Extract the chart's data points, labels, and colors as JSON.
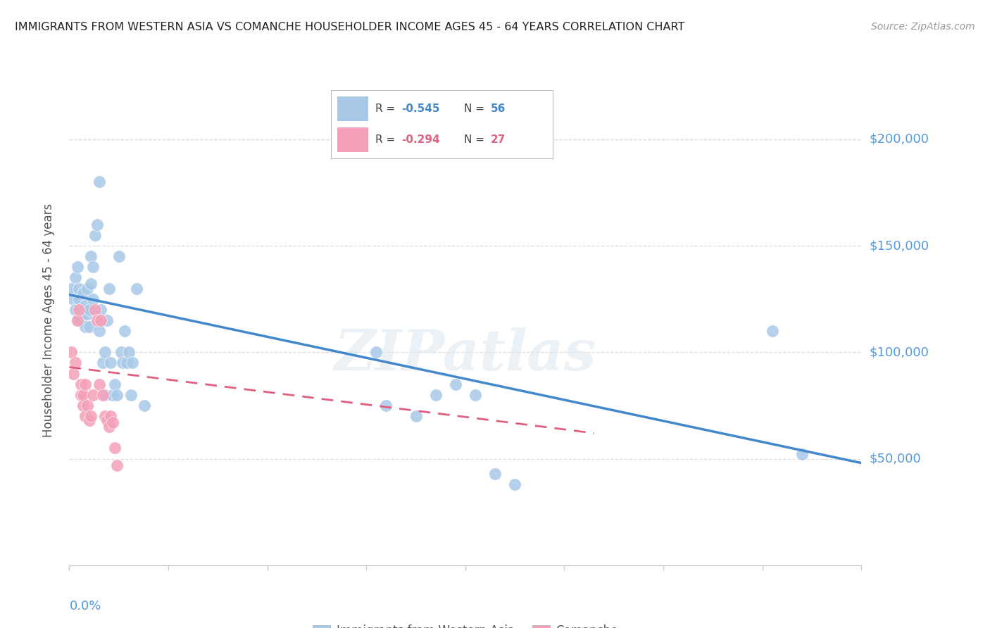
{
  "title": "IMMIGRANTS FROM WESTERN ASIA VS COMANCHE HOUSEHOLDER INCOME AGES 45 - 64 YEARS CORRELATION CHART",
  "source": "Source: ZipAtlas.com",
  "ylabel": "Householder Income Ages 45 - 64 years",
  "xlim": [
    0.0,
    0.4
  ],
  "ylim": [
    0,
    230000
  ],
  "yticks": [
    50000,
    100000,
    150000,
    200000
  ],
  "ytick_labels": [
    "$50,000",
    "$100,000",
    "$150,000",
    "$200,000"
  ],
  "xtick_positions": [
    0.0,
    0.05,
    0.1,
    0.15,
    0.2,
    0.25,
    0.3,
    0.35,
    0.4
  ],
  "blue_color": "#a8c8e8",
  "blue_line_color": "#4488cc",
  "pink_color": "#f4a0b8",
  "pink_line_color": "#e06080",
  "watermark": "ZIPatlas",
  "blue_scatter_x": [
    0.001,
    0.002,
    0.003,
    0.003,
    0.004,
    0.004,
    0.005,
    0.005,
    0.006,
    0.006,
    0.007,
    0.007,
    0.008,
    0.008,
    0.009,
    0.009,
    0.01,
    0.01,
    0.011,
    0.011,
    0.012,
    0.012,
    0.013,
    0.014,
    0.015,
    0.015,
    0.016,
    0.017,
    0.018,
    0.018,
    0.019,
    0.02,
    0.021,
    0.022,
    0.023,
    0.024,
    0.025,
    0.026,
    0.027,
    0.028,
    0.029,
    0.03,
    0.031,
    0.032,
    0.034,
    0.038,
    0.155,
    0.16,
    0.175,
    0.185,
    0.195,
    0.205,
    0.215,
    0.225,
    0.355,
    0.37
  ],
  "blue_scatter_y": [
    130000,
    125000,
    135000,
    120000,
    140000,
    115000,
    125000,
    130000,
    120000,
    115000,
    128000,
    118000,
    122000,
    112000,
    130000,
    118000,
    120000,
    112000,
    145000,
    132000,
    140000,
    125000,
    155000,
    160000,
    180000,
    110000,
    120000,
    95000,
    100000,
    80000,
    115000,
    130000,
    95000,
    80000,
    85000,
    80000,
    145000,
    100000,
    95000,
    110000,
    95000,
    100000,
    80000,
    95000,
    130000,
    75000,
    100000,
    75000,
    70000,
    80000,
    85000,
    80000,
    43000,
    38000,
    110000,
    52000
  ],
  "pink_scatter_x": [
    0.001,
    0.002,
    0.003,
    0.004,
    0.005,
    0.006,
    0.006,
    0.007,
    0.007,
    0.008,
    0.008,
    0.009,
    0.01,
    0.011,
    0.012,
    0.013,
    0.014,
    0.015,
    0.016,
    0.017,
    0.018,
    0.019,
    0.02,
    0.021,
    0.022,
    0.023,
    0.024
  ],
  "pink_scatter_y": [
    100000,
    90000,
    95000,
    115000,
    120000,
    85000,
    80000,
    75000,
    80000,
    85000,
    70000,
    75000,
    68000,
    70000,
    80000,
    120000,
    115000,
    85000,
    115000,
    80000,
    70000,
    68000,
    65000,
    70000,
    67000,
    55000,
    47000
  ],
  "blue_line_x": [
    0.0,
    0.4
  ],
  "blue_line_y": [
    127000,
    48000
  ],
  "pink_line_x": [
    0.0,
    0.265
  ],
  "pink_line_y": [
    93000,
    62000
  ],
  "grid_color": "#dddddd",
  "spine_color": "#cccccc",
  "axis_label_color": "#5599dd",
  "ytick_color": "#5599dd",
  "title_color": "#222222",
  "source_color": "#999999"
}
